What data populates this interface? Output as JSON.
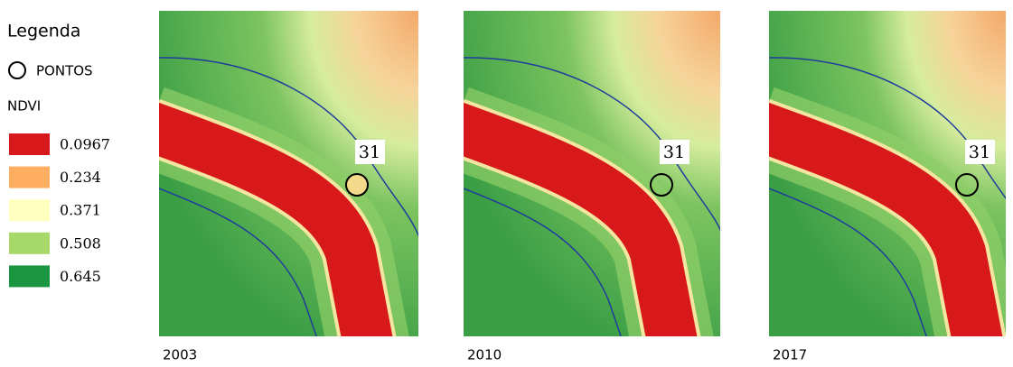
{
  "legend": {
    "title": "Legenda",
    "points_label": "PONTOS",
    "ndvi_label": "NDVI",
    "items": [
      {
        "label": "0.0967",
        "color": "#d7191c"
      },
      {
        "label": "0.234",
        "color": "#fdae61"
      },
      {
        "label": "0.371",
        "color": "#ffffc0"
      },
      {
        "label": "0.508",
        "color": "#a6d96a"
      },
      {
        "label": "0.645",
        "color": "#1a9641"
      }
    ]
  },
  "panels": [
    {
      "year": "2003",
      "point": "31"
    },
    {
      "year": "2010",
      "point": "31"
    },
    {
      "year": "2017",
      "point": "31"
    }
  ]
}
